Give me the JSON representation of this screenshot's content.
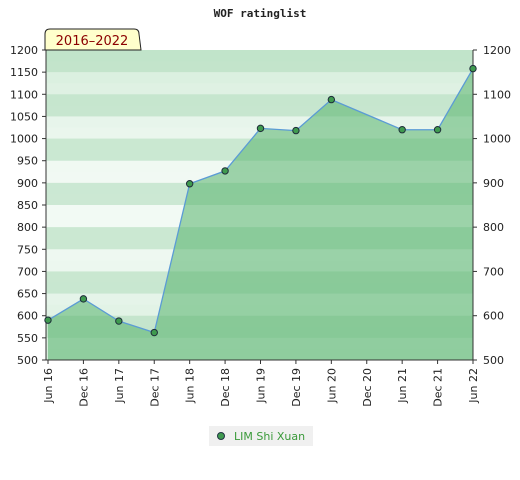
{
  "chart_data": {
    "type": "area",
    "title": "WOF ratinglist",
    "badge": "2016–2022",
    "x": [
      "Jun 16",
      "Dec 16",
      "Jun 17",
      "Dec 17",
      "Jun 18",
      "Dec 18",
      "Jun 19",
      "Dec 19",
      "Jun 20",
      "Dec 20",
      "Jun 21",
      "Dec 21",
      "Jun 22"
    ],
    "series": [
      {
        "name": "LIM Shi Xuan",
        "values": [
          590,
          638,
          588,
          562,
          898,
          927,
          1023,
          1018,
          1088,
          null,
          1020,
          1020,
          1158
        ]
      }
    ],
    "y_left": {
      "ticks": [
        500,
        550,
        600,
        650,
        700,
        750,
        800,
        850,
        900,
        950,
        1000,
        1050,
        1100,
        1150,
        1200
      ],
      "range": [
        500,
        1200
      ]
    },
    "y_right": {
      "ticks": [
        500,
        600,
        700,
        800,
        900,
        1000,
        1100,
        1200
      ],
      "range": [
        500,
        1200
      ]
    },
    "legend": "bottom-center",
    "colors": {
      "line": "#5b9bd5",
      "marker_fill": "#3f9a4f",
      "area_fill": "#55b36b",
      "band_dark": "#b7dfc1",
      "band_light": "#f2faf4",
      "badge_bg": "#ffffcc",
      "legend_bg": "#f0f0f0"
    }
  }
}
